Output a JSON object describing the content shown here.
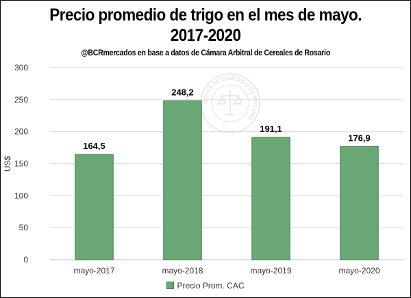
{
  "chart_data": {
    "type": "bar",
    "title_line1": "Precio promedio de trigo en el mes de mayo.",
    "title_line2": "2017-2020",
    "subtitle": "@BCRmercados en base a datos de Cámara Arbitral de Cereales de Rosario",
    "categories": [
      "mayo-2017",
      "mayo-2018",
      "mayo-2019",
      "mayo-2020"
    ],
    "values": [
      164.5,
      248.2,
      191.1,
      176.9
    ],
    "data_labels": [
      "164,5",
      "248,2",
      "191,1",
      "176,9"
    ],
    "ylabel": "US$",
    "xlabel": "",
    "ylim": [
      0,
      300
    ],
    "yticks": [
      0,
      50,
      100,
      150,
      200,
      250,
      300
    ],
    "grid": true,
    "legend": {
      "position": "bottom",
      "entries": [
        "Precio Prom. CAC"
      ]
    },
    "colors": {
      "bar": "#6aa876",
      "bar_edge": "#3f7a4c",
      "grid": "#d9d9d9"
    },
    "watermark_text": "BOLSA DE COMERCIO DE ROSARIO"
  }
}
